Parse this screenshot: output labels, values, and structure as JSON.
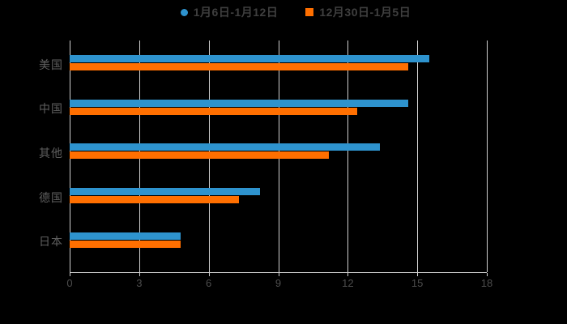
{
  "chart_data": {
    "type": "bar",
    "orientation": "horizontal",
    "title": "",
    "xlabel": "",
    "ylabel": "",
    "categories": [
      "美国",
      "中国",
      "其他",
      "德国",
      "日本"
    ],
    "series": [
      {
        "name": "1月6日-1月12日",
        "marker": "circle",
        "color": "#2e93ce",
        "values": [
          15.5,
          14.6,
          13.4,
          8.2,
          4.8
        ]
      },
      {
        "name": "12月30日-1月5日",
        "marker": "square",
        "color": "#ff6f00",
        "values": [
          14.6,
          12.4,
          11.2,
          7.3,
          4.8
        ]
      }
    ],
    "x_ticks": [
      0,
      3,
      6,
      9,
      12,
      15,
      18
    ],
    "xlim": [
      0,
      18
    ],
    "grid": true,
    "legend_position": "top",
    "colors": {
      "background": "#000000",
      "gridline": "#cfcfcf",
      "axis_line": "#cfcfcf",
      "tick_label": "#4d4d4d",
      "category_label": "#5f5f5f",
      "legend_text": "#3f3f3f"
    }
  }
}
